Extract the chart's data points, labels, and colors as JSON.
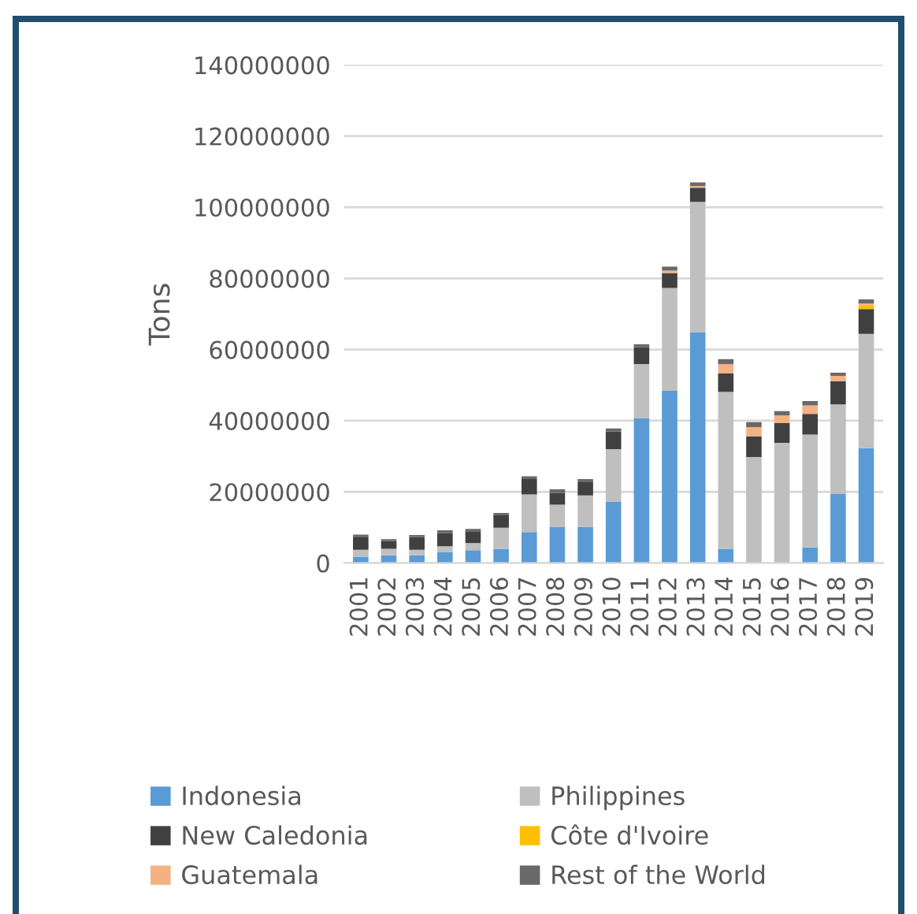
{
  "chart_data": {
    "type": "bar",
    "stacked": true,
    "ylabel": "Tons",
    "categories": [
      "2001",
      "2002",
      "2003",
      "2004",
      "2005",
      "2006",
      "2007",
      "2008",
      "2009",
      "2010",
      "2011",
      "2012",
      "2013",
      "2014",
      "2015",
      "2016",
      "2017",
      "2018",
      "2019"
    ],
    "series": [
      {
        "name": "Indonesia",
        "color": "#5b9bd5",
        "values": [
          1800000.0,
          2200000.0,
          2200000.0,
          3000000.0,
          3600000.0,
          4000000.0,
          8700000.0,
          10200000.0,
          10200000.0,
          17300000.0,
          40700000.0,
          48400000.0,
          64800000.0,
          4000000.0,
          0,
          0,
          4400000.0,
          19400000.0,
          32300000.0
        ]
      },
      {
        "name": "Philippines",
        "color": "#bfbfbf",
        "values": [
          1900000.0,
          1800000.0,
          1500000.0,
          1700000.0,
          2000000.0,
          5900000.0,
          10600000.0,
          6200000.0,
          8800000.0,
          14700000.0,
          15200000.0,
          28900000.0,
          36700000.0,
          44100000.0,
          29800000.0,
          33800000.0,
          31700000.0,
          25200000.0,
          32100000.0
        ]
      },
      {
        "name": "New Caledonia",
        "color": "#404040",
        "values": [
          3700000.0,
          2200000.0,
          3600000.0,
          3700000.0,
          3300000.0,
          3700000.0,
          4300000.0,
          3300000.0,
          3700000.0,
          5000000.0,
          4800000.0,
          4200000.0,
          4000000.0,
          5200000.0,
          5800000.0,
          5500000.0,
          5800000.0,
          6500000.0,
          7000000.0
        ]
      },
      {
        "name": "Côte d'Ivoire",
        "color": "#ffc000",
        "values": [
          0,
          0,
          0,
          0,
          0,
          0,
          0,
          0,
          0,
          0,
          0,
          0,
          0,
          0,
          0,
          0,
          0,
          0,
          1200000.0
        ]
      },
      {
        "name": "Guatemala",
        "color": "#f4b183",
        "values": [
          0,
          0,
          0,
          0,
          0,
          0,
          0,
          0,
          0,
          0,
          0,
          700000.0,
          500000.0,
          2600000.0,
          2600000.0,
          2200000.0,
          2400000.0,
          1500000.0,
          300000.0
        ]
      },
      {
        "name": "Rest of the World",
        "color": "#696969",
        "values": [
          600000.0,
          500000.0,
          600000.0,
          800000.0,
          700000.0,
          500000.0,
          800000.0,
          1000000.0,
          900000.0,
          800000.0,
          800000.0,
          1100000.0,
          1000000.0,
          1400000.0,
          1400000.0,
          1200000.0,
          1200000.0,
          900000.0,
          1200000.0
        ]
      }
    ],
    "ylim": [
      0,
      140000000
    ],
    "yticks": [
      0,
      20000000,
      40000000,
      60000000,
      80000000,
      100000000,
      120000000,
      140000000
    ],
    "grid": "y",
    "legend": "bottom"
  }
}
